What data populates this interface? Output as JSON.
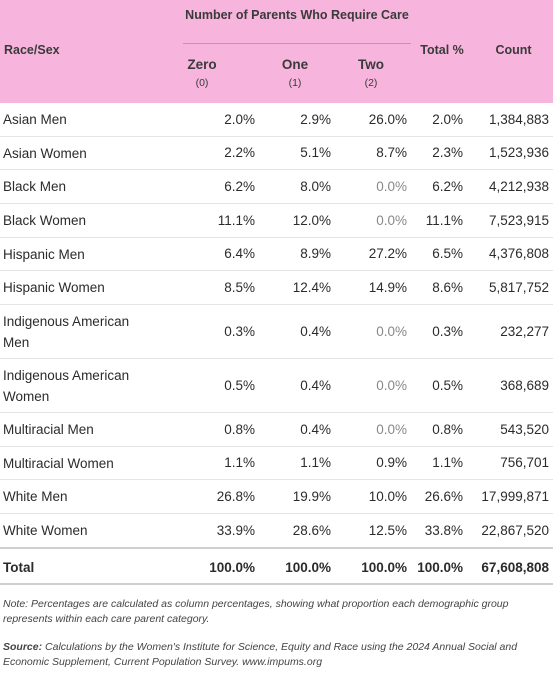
{
  "header": {
    "group_label": "Number of Parents Who Require Care",
    "race_sex": "Race/Sex",
    "total_pct": "Total %",
    "count": "Count",
    "sub": [
      {
        "name": "Zero",
        "code": "(0)"
      },
      {
        "name": "One",
        "code": "(1)"
      },
      {
        "name": "Two",
        "code": "(2)"
      }
    ]
  },
  "rows": [
    {
      "label": "Asian Men",
      "zero": "2.0%",
      "one": "2.9%",
      "two": "26.0%",
      "total": "2.0%",
      "count": "1,384,883"
    },
    {
      "label": "Asian Women",
      "zero": "2.2%",
      "one": "5.1%",
      "two": "8.7%",
      "total": "2.3%",
      "count": "1,523,936"
    },
    {
      "label": "Black Men",
      "zero": "6.2%",
      "one": "8.0%",
      "two": "0.0%",
      "total": "6.2%",
      "count": "4,212,938"
    },
    {
      "label": "Black Women",
      "zero": "11.1%",
      "one": "12.0%",
      "two": "0.0%",
      "total": "11.1%",
      "count": "7,523,915"
    },
    {
      "label": "Hispanic Men",
      "zero": "6.4%",
      "one": "8.9%",
      "two": "27.2%",
      "total": "6.5%",
      "count": "4,376,808"
    },
    {
      "label": "Hispanic Women",
      "zero": "8.5%",
      "one": "12.4%",
      "two": "14.9%",
      "total": "8.6%",
      "count": "5,817,752"
    },
    {
      "label_line1": "Indigenous American",
      "label_line2": "Men",
      "zero": "0.3%",
      "one": "0.4%",
      "two": "0.0%",
      "total": "0.3%",
      "count": "232,277"
    },
    {
      "label_line1": "Indigenous American",
      "label_line2": "Women",
      "zero": "0.5%",
      "one": "0.4%",
      "two": "0.0%",
      "total": "0.5%",
      "count": "368,689"
    },
    {
      "label": "Multiracial Men",
      "zero": "0.8%",
      "one": "0.4%",
      "two": "0.0%",
      "total": "0.8%",
      "count": "543,520"
    },
    {
      "label": "Multiracial Women",
      "zero": "1.1%",
      "one": "1.1%",
      "two": "0.9%",
      "total": "1.1%",
      "count": "756,701"
    },
    {
      "label": "White Men",
      "zero": "26.8%",
      "one": "19.9%",
      "two": "10.0%",
      "total": "26.6%",
      "count": "17,999,871"
    },
    {
      "label": "White Women",
      "zero": "33.9%",
      "one": "28.6%",
      "two": "12.5%",
      "total": "33.8%",
      "count": "22,867,520"
    }
  ],
  "total_row": {
    "label": "Total",
    "zero": "100.0%",
    "one": "100.0%",
    "two": "100.0%",
    "total": "100.0%",
    "count": "67,608,808"
  },
  "note": "Note: Percentages are calculated as column percentages, showing what proportion each demographic group represents within each care parent category.",
  "source_label": "Source:",
  "source_text": "Calculations by the Women's Institute for Science, Equity and Race using the 2024 Annual Social and Economic Supplement, Current Population Survey. www.impums.org",
  "colors": {
    "header_bg": "#f7b5dd",
    "zero_value_text": "#888888"
  }
}
